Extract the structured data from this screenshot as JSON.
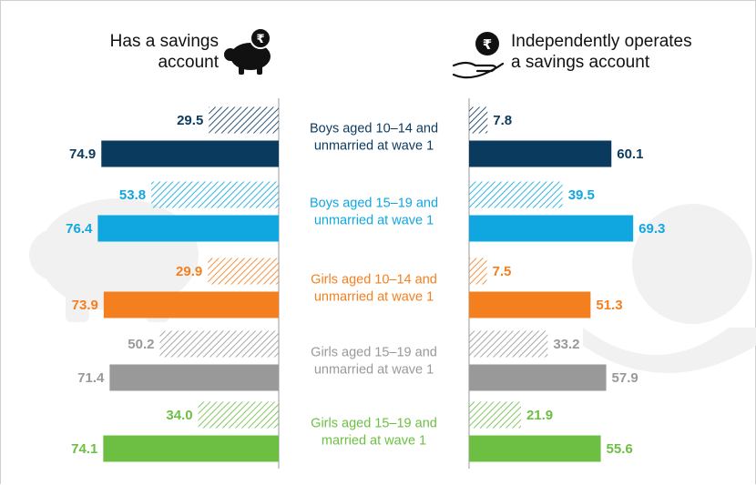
{
  "headers": {
    "left": [
      "Has a savings",
      "account"
    ],
    "right": [
      "Independently operates",
      "a savings account"
    ]
  },
  "icons": {
    "left": "piggy-bank-rupee-icon",
    "right": "hand-holding-rupee-coin-icon"
  },
  "colors": {
    "boys_10_14": "#0b3a5f",
    "boys_15_19": "#10a7e0",
    "girls_10_14_unmarried": "#f47f1f",
    "girls_15_19_unmarried": "#999999",
    "girls_15_19_married": "#6dbf44"
  },
  "chart_data": [
    {
      "type": "bar",
      "orientation": "horizontal",
      "title": "Has a savings account",
      "direction": "right-to-left",
      "categories": [
        [
          "Boys aged 10–14 and",
          "unmarried at wave 1"
        ],
        [
          "Boys aged 15–19 and",
          "unmarried at wave 1"
        ],
        [
          "Girls aged 10–14 and",
          "unmarried at wave 1"
        ],
        [
          "Girls aged 15–19 and",
          "unmarried at wave 1"
        ],
        [
          "Girls aged 15–19 and",
          "married at wave 1"
        ]
      ],
      "series": [
        {
          "style": "hatched",
          "values": [
            29.5,
            53.8,
            29.9,
            50.2,
            34.0
          ],
          "labels": [
            "29.5",
            "53.8",
            "29.9",
            "50.2",
            "34.0"
          ]
        },
        {
          "style": "solid",
          "values": [
            74.9,
            76.4,
            73.9,
            71.4,
            74.1
          ],
          "labels": [
            "74.9",
            "76.4",
            "73.9",
            "71.4",
            "74.1"
          ]
        }
      ]
    },
    {
      "type": "bar",
      "orientation": "horizontal",
      "title": "Independently operates a savings account",
      "direction": "left-to-right",
      "categories": [
        [
          "Boys aged 10–14 and",
          "unmarried at wave 1"
        ],
        [
          "Boys aged 15–19 and",
          "unmarried at wave 1"
        ],
        [
          "Girls aged 10–14 and",
          "unmarried at wave 1"
        ],
        [
          "Girls aged 15–19 and",
          "unmarried at wave 1"
        ],
        [
          "Girls aged 15–19 and",
          "married at wave 1"
        ]
      ],
      "series": [
        {
          "style": "hatched",
          "values": [
            7.8,
            39.5,
            7.5,
            33.2,
            21.9
          ],
          "labels": [
            "7.8",
            "39.5",
            "7.5",
            "33.2",
            "21.9"
          ]
        },
        {
          "style": "solid",
          "values": [
            60.1,
            69.3,
            51.3,
            57.9,
            55.6
          ],
          "labels": [
            "60.1",
            "69.3",
            "51.3",
            "57.9",
            "55.6"
          ]
        }
      ]
    }
  ]
}
